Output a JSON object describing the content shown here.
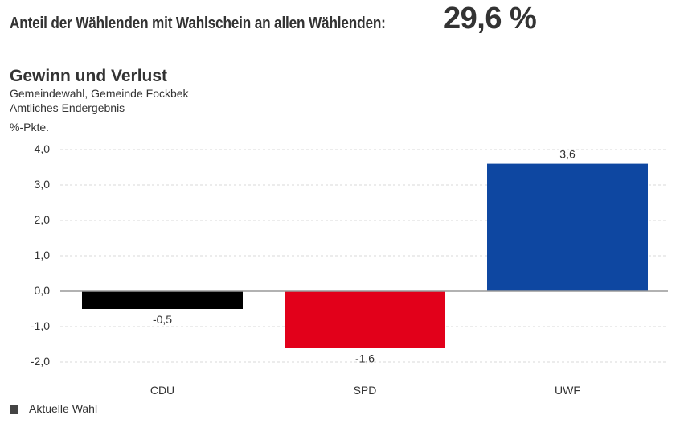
{
  "headline": {
    "label": "Anteil der Wählenden mit Wahlschein an allen Wählenden:",
    "value": "29,6 %"
  },
  "chart_header": {
    "title": "Gewinn und Verlust",
    "subtitle": "Gemeindewahl, Gemeinde Fockbek",
    "status": "Amtliches Endergebnis",
    "unit": "%-Pkte."
  },
  "legend": {
    "items": [
      {
        "label": "Aktuelle Wahl",
        "color": "#444444"
      }
    ]
  },
  "chart_data": {
    "type": "bar",
    "title": "Gewinn und Verlust",
    "subtitle": "Gemeindewahl, Gemeinde Fockbek – Amtliches Endergebnis",
    "xlabel": "",
    "ylabel": "%-Pkte.",
    "ylim": [
      -2.0,
      4.0
    ],
    "yticks": [
      4.0,
      3.0,
      2.0,
      1.0,
      0.0,
      -1.0,
      -2.0
    ],
    "ytick_labels": [
      "4,0",
      "3,0",
      "2,0",
      "1,0",
      "0,0",
      "-1,0",
      "-2,0"
    ],
    "grid": true,
    "categories": [
      "CDU",
      "SPD",
      "UWF"
    ],
    "series": [
      {
        "name": "Aktuelle Wahl",
        "values": [
          -0.5,
          -1.6,
          3.6
        ],
        "labels": [
          "-0,5",
          "-1,6",
          "3,6"
        ],
        "colors": [
          "#000000",
          "#e2001a",
          "#0e47a1"
        ]
      }
    ],
    "legend_position": "bottom-left"
  }
}
